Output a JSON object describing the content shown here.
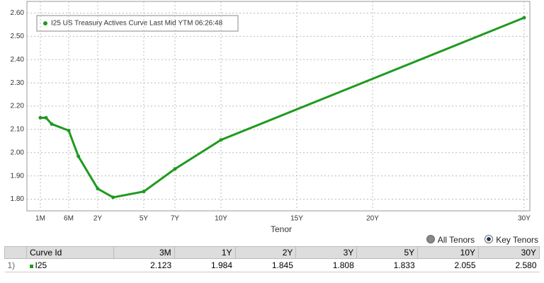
{
  "chart_data": {
    "type": "line",
    "legend": "I25 US Treasury Actives Curve Last Mid YTM 06:26:48",
    "x_label": "Tenor",
    "series": [
      {
        "name": "I25",
        "color": "#1f9a1f",
        "x": [
          0.0833,
          0.1667,
          0.25,
          0.5,
          1,
          2,
          3,
          5,
          7,
          10,
          30
        ],
        "values": [
          2.15,
          2.15,
          2.123,
          2.095,
          1.984,
          1.845,
          1.808,
          1.833,
          1.93,
          2.055,
          2.58
        ]
      }
    ],
    "ylim": [
      1.75,
      2.65
    ],
    "yticks": [
      {
        "value": 1.8,
        "label": "1.80"
      },
      {
        "value": 1.9,
        "label": "1.90"
      },
      {
        "value": 2.0,
        "label": "2.00"
      },
      {
        "value": 2.1,
        "label": "2.10"
      },
      {
        "value": 2.2,
        "label": "2.20"
      },
      {
        "value": 2.3,
        "label": "2.30"
      },
      {
        "value": 2.4,
        "label": "2.40"
      },
      {
        "value": 2.5,
        "label": "2.50"
      },
      {
        "value": 2.6,
        "label": "2.60"
      }
    ],
    "xticks": [
      {
        "value": 0.0833,
        "label": "1M"
      },
      {
        "value": 0.5,
        "label": "6M"
      },
      {
        "value": 2,
        "label": "2Y"
      },
      {
        "value": 5,
        "label": "5Y"
      },
      {
        "value": 7,
        "label": "7Y"
      },
      {
        "value": 10,
        "label": "10Y"
      },
      {
        "value": 15,
        "label": "15Y"
      },
      {
        "value": 20,
        "label": "20Y"
      },
      {
        "value": 30,
        "label": "30Y"
      }
    ],
    "grid": true
  },
  "controls": {
    "all": "All Tenors",
    "key": "Key Tenors"
  },
  "table": {
    "header": [
      "Curve Id",
      "3M",
      "1Y",
      "2Y",
      "3Y",
      "5Y",
      "10Y",
      "30Y"
    ],
    "rows": [
      [
        "1)",
        "I25",
        "2.123",
        "1.984",
        "1.845",
        "1.808",
        "1.833",
        "2.055",
        "2.580"
      ]
    ]
  }
}
